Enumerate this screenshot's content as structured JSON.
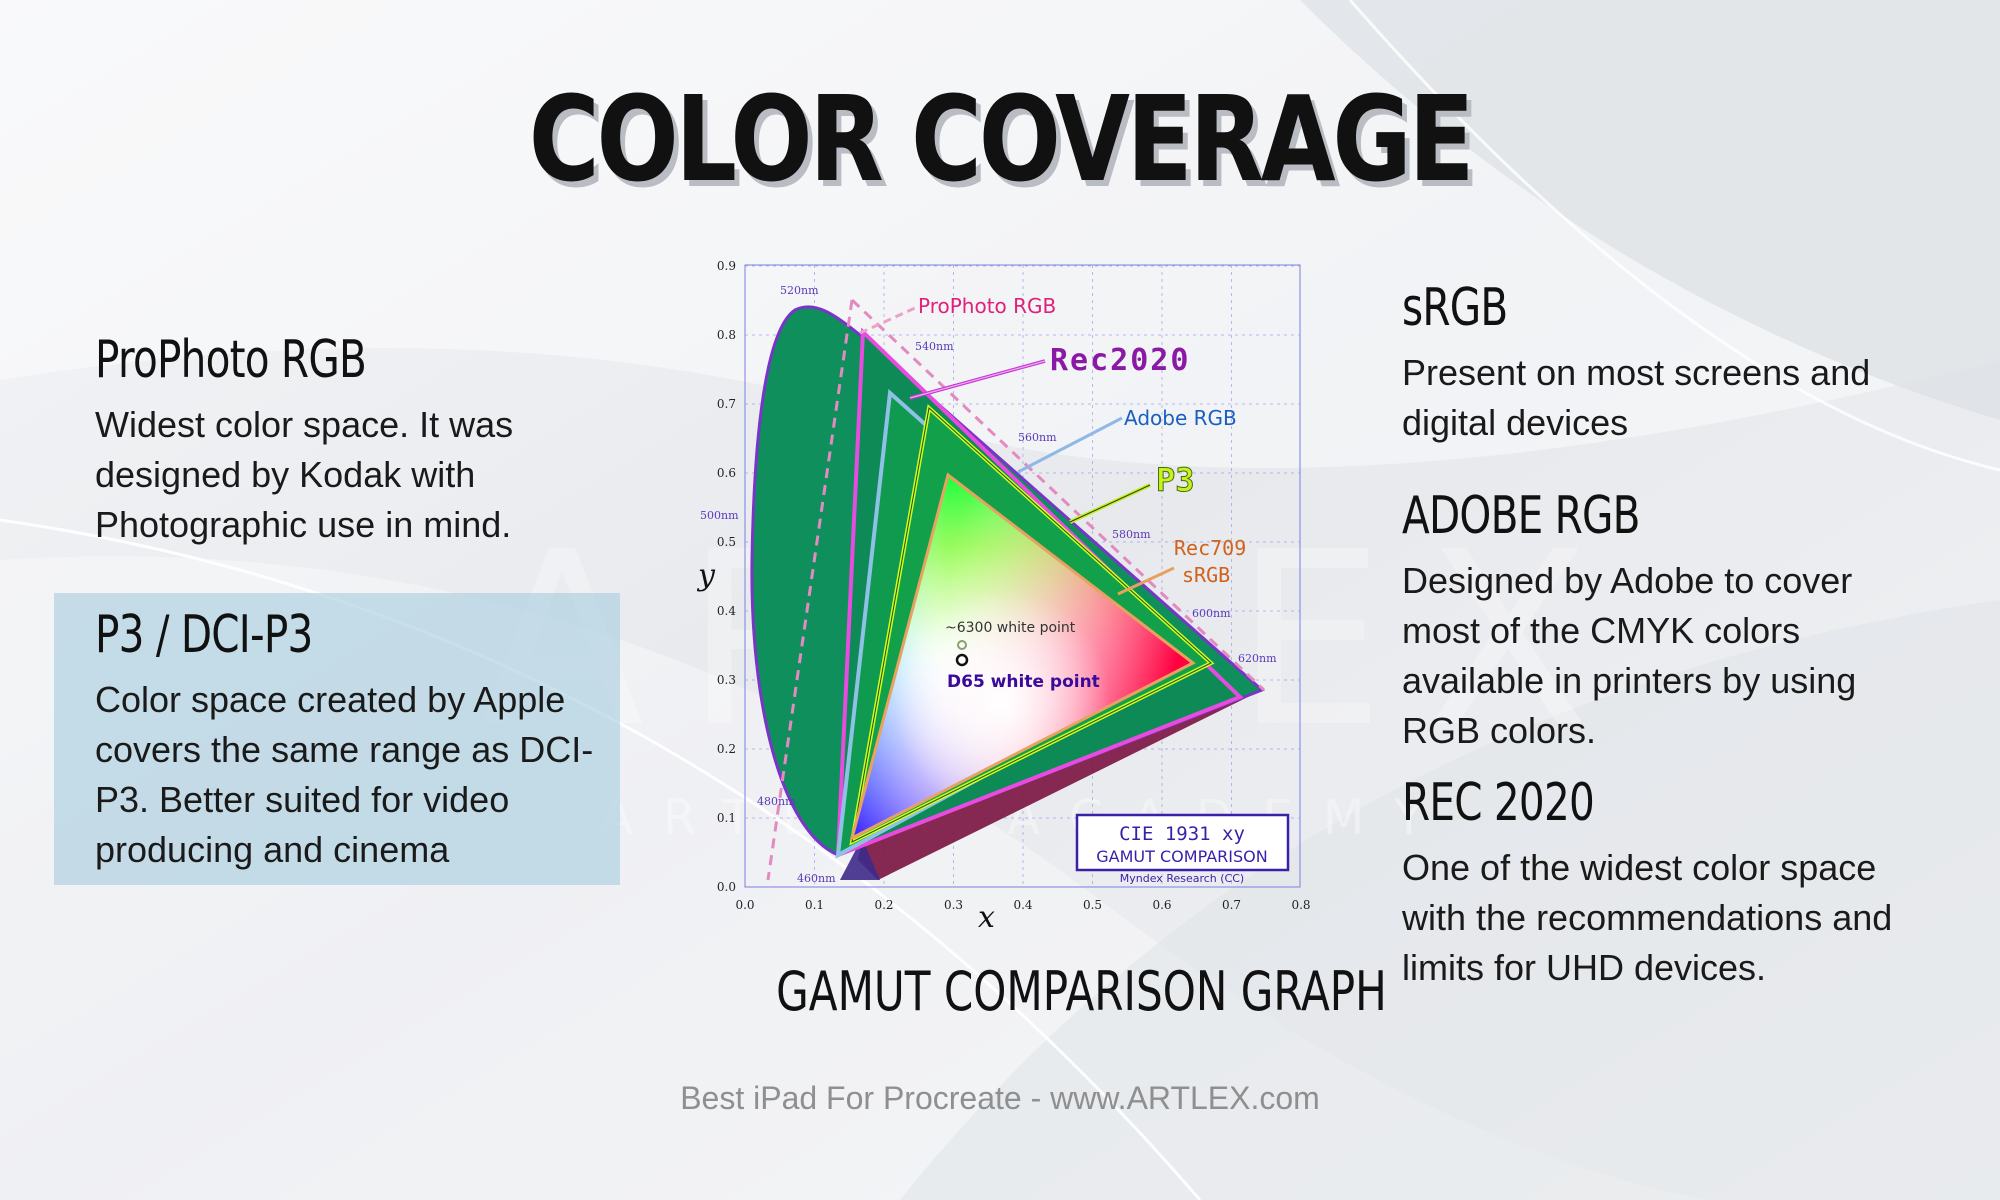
{
  "title": "COLOR COVERAGE",
  "left": [
    {
      "heading": "ProPhoto RGB",
      "text": "Widest color space. It was designed by Kodak with Photographic use in mind."
    },
    {
      "heading": "P3 / DCI-P3",
      "text": "Color space created by Apple covers the same range as DCI-P3. Better suited for video producing and cinema"
    }
  ],
  "right": [
    {
      "heading": "sRGB",
      "text": "Present on most screens and digital devices"
    },
    {
      "heading": "ADOBE RGB",
      "text": "Designed by Adobe to cover most of the CMYK colors available in printers by using RGB colors."
    },
    {
      "heading": "REC 2020",
      "text": "One of the widest color space with the recommendations and limits for UHD devices."
    }
  ],
  "graph": {
    "caption": "GAMUT COMPARISON GRAPH",
    "labels": {
      "prophoto": "ProPhoto RGB",
      "rec2020": "Rec2020",
      "adobe": "Adobe RGB",
      "p3": "P3",
      "rec709": "Rec709",
      "srgb": "sRGB"
    },
    "wp6300": "~6300 white point",
    "d65": "D65 white point",
    "xlabel": "x",
    "ylabel": "y",
    "xticks": [
      "0.0",
      "0.1",
      "0.2",
      "0.3",
      "0.4",
      "0.5",
      "0.6",
      "0.7",
      "0.8"
    ],
    "yticks": [
      "0.0",
      "0.1",
      "0.2",
      "0.3",
      "0.4",
      "0.5",
      "0.6",
      "0.7",
      "0.8",
      "0.9"
    ],
    "nm": [
      "460nm",
      "480nm",
      "500nm",
      "520nm",
      "540nm",
      "560nm",
      "580nm",
      "600nm",
      "620nm"
    ],
    "box_title": "CIE 1931 xy",
    "box_sub": "GAMUT COMPARISON",
    "credit": "Myndex Research (CC)",
    "colors": {
      "prophoto": "#e23d8f",
      "rec2020": "#a02db8",
      "adobe": "#4f8fd6",
      "p3": "#9ccc1a",
      "srgb": "#d9732a"
    }
  },
  "watermark": "ARTLEX",
  "watermark_sub": "ARTLEX ACADEMY",
  "footer": "Best iPad For Procreate - www.ARTLEX.com"
}
